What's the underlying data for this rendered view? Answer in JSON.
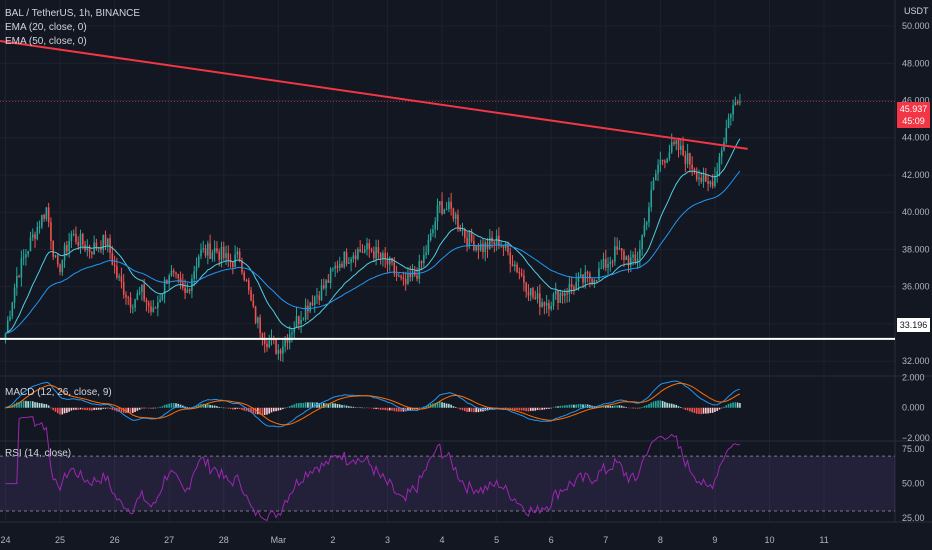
{
  "header": {
    "symbol_line": "BAL / TetherUS, 1h, BINANCE",
    "ema20_label": "EMA (20, close, 0)",
    "ema50_label": "EMA (50, close, 0)",
    "currency": "USDT"
  },
  "price_tag": {
    "price": "45.937",
    "countdown": "45:09",
    "color": "#f23645"
  },
  "support_tag": {
    "price": "33.196"
  },
  "macd_label": "MACD (12, 26, close, 9)",
  "rsi_label": "RSI (14, close)",
  "colors": {
    "up": "#26a69a",
    "down": "#ef5350",
    "ema20": "#4dd0e1",
    "ema50": "#2196f3",
    "trendline": "#f23645",
    "support": "#ffffff",
    "macd": "#2196f3",
    "signal": "#ff6d00",
    "rsi": "#9c27b0",
    "rsi_band": "#7e57c2"
  },
  "chart_data": [
    {
      "type": "candlestick",
      "title": "BAL / TetherUS, 1h, BINANCE",
      "y_ticks": [
        "50.000",
        "48.000",
        "46.000",
        "44.000",
        "42.000",
        "40.000",
        "38.000",
        "36.000",
        "34.000",
        "32.000"
      ],
      "ylim": [
        31.2,
        51.4
      ],
      "x_ticks": [
        "24",
        "25",
        "26",
        "27",
        "28",
        "Mar",
        "2",
        "3",
        "4",
        "5",
        "6",
        "7",
        "8",
        "9",
        "10",
        "11"
      ],
      "x_range_days": [
        -0.1,
        16.3
      ],
      "series": [
        {
          "name": "EMA (20, close, 0)",
          "type": "line"
        },
        {
          "name": "EMA (50, close, 0)",
          "type": "line"
        }
      ],
      "trendline": {
        "from": [
          -0.1,
          49.2
        ],
        "to": [
          13.6,
          43.4
        ]
      },
      "horizontal_line": 33.196,
      "last_price": 45.937,
      "anchors": [
        [
          0.0,
          33.5
        ],
        [
          0.2,
          36.5
        ],
        [
          0.4,
          38.0
        ],
        [
          0.55,
          39.0
        ],
        [
          0.75,
          40.2
        ],
        [
          0.95,
          36.7
        ],
        [
          1.2,
          38.8
        ],
        [
          1.55,
          38.0
        ],
        [
          1.85,
          38.5
        ],
        [
          2.05,
          36.5
        ],
        [
          2.3,
          35.2
        ],
        [
          2.5,
          35.7
        ],
        [
          2.7,
          34.5
        ],
        [
          3.0,
          36.8
        ],
        [
          3.3,
          35.5
        ],
        [
          3.55,
          37.8
        ],
        [
          3.85,
          38.0
        ],
        [
          4.1,
          37.3
        ],
        [
          4.3,
          37.6
        ],
        [
          4.55,
          34.5
        ],
        [
          4.75,
          33.3
        ],
        [
          5.0,
          32.6
        ],
        [
          5.3,
          34.0
        ],
        [
          5.6,
          35.3
        ],
        [
          5.85,
          36.0
        ],
        [
          6.1,
          37.3
        ],
        [
          6.4,
          37.9
        ],
        [
          6.7,
          38.0
        ],
        [
          7.05,
          37.1
        ],
        [
          7.3,
          36.0
        ],
        [
          7.6,
          37.0
        ],
        [
          7.8,
          38.7
        ],
        [
          7.95,
          40.4
        ],
        [
          8.2,
          40.0
        ],
        [
          8.45,
          38.6
        ],
        [
          8.75,
          38.1
        ],
        [
          9.05,
          38.5
        ],
        [
          9.4,
          36.9
        ],
        [
          9.7,
          35.3
        ],
        [
          9.95,
          35.2
        ],
        [
          10.2,
          35.7
        ],
        [
          10.5,
          36.2
        ],
        [
          10.85,
          36.7
        ],
        [
          11.2,
          37.9
        ],
        [
          11.55,
          37.2
        ],
        [
          11.75,
          39.8
        ],
        [
          11.95,
          42.5
        ],
        [
          12.15,
          43.3
        ],
        [
          12.3,
          43.5
        ],
        [
          12.6,
          42.5
        ],
        [
          12.85,
          41.3
        ],
        [
          13.0,
          42.0
        ],
        [
          13.15,
          43.8
        ],
        [
          13.3,
          45.6
        ],
        [
          13.45,
          45.94
        ]
      ]
    },
    {
      "type": "bar",
      "title": "MACD (12, 26, close, 9)",
      "y_ticks": [
        "2.000",
        "0.000",
        "−2.000"
      ],
      "ylim": [
        -2.2,
        2.1
      ],
      "series": [
        {
          "name": "MACD",
          "type": "line"
        },
        {
          "name": "Signal",
          "type": "line"
        },
        {
          "name": "Histogram",
          "type": "bar"
        }
      ]
    },
    {
      "type": "line",
      "title": "RSI (14, close)",
      "y_ticks": [
        "75.00",
        "50.00",
        "25.00"
      ],
      "ylim": [
        22,
        81
      ],
      "bands": [
        30,
        70
      ],
      "series": [
        {
          "name": "RSI (14, close)",
          "type": "line"
        }
      ]
    }
  ]
}
